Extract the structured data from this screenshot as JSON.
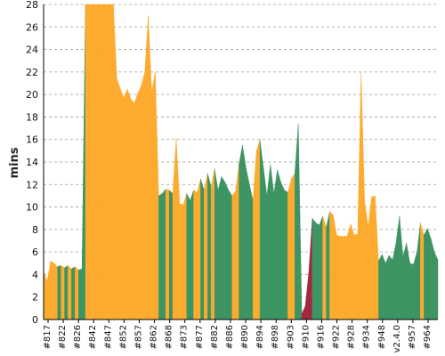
{
  "chart_data": {
    "type": "area",
    "title": "",
    "xlabel": "",
    "ylabel": "mins",
    "ylim": [
      0,
      28
    ],
    "yticks": [
      0,
      2,
      4,
      6,
      8,
      10,
      12,
      14,
      16,
      18,
      20,
      22,
      24,
      26,
      28
    ],
    "grid": true,
    "colors": {
      "success": "#3d9463",
      "unstable": "#fdab2f",
      "failure": "#a3273e"
    },
    "x_tick_labels": [
      "#817",
      "#822",
      "#826",
      "#842",
      "#847",
      "#852",
      "#857",
      "#862",
      "#868",
      "#873",
      "#877",
      "#882",
      "#886",
      "#890",
      "#894",
      "#898",
      "#903",
      "#910",
      "#916",
      "#922",
      "#928",
      "#934",
      "#948",
      "v2.4.0",
      "#957",
      "#964"
    ],
    "points": [
      [
        4.3,
        "u"
      ],
      [
        3.4,
        "u"
      ],
      [
        5.2,
        "u"
      ],
      [
        5.0,
        "u"
      ],
      [
        4.7,
        "s"
      ],
      [
        4.8,
        "u"
      ],
      [
        4.6,
        "s"
      ],
      [
        4.8,
        "u"
      ],
      [
        4.5,
        "s"
      ],
      [
        4.7,
        "u"
      ],
      [
        4.4,
        "s"
      ],
      [
        4.5,
        "s"
      ],
      [
        28.5,
        "u"
      ],
      [
        28.5,
        "u"
      ],
      [
        28.5,
        "u"
      ],
      [
        28.5,
        "u"
      ],
      [
        28.5,
        "u"
      ],
      [
        28.5,
        "u"
      ],
      [
        28.5,
        "u"
      ],
      [
        28.5,
        "u"
      ],
      [
        28.5,
        "u"
      ],
      [
        21.4,
        "u"
      ],
      [
        20.5,
        "u"
      ],
      [
        19.7,
        "u"
      ],
      [
        20.5,
        "u"
      ],
      [
        19.6,
        "u"
      ],
      [
        19.2,
        "u"
      ],
      [
        20.1,
        "u"
      ],
      [
        20.8,
        "u"
      ],
      [
        22.0,
        "u"
      ],
      [
        27.0,
        "u"
      ],
      [
        20.2,
        "u"
      ],
      [
        22.0,
        "u"
      ],
      [
        11.0,
        "s"
      ],
      [
        11.2,
        "s"
      ],
      [
        11.6,
        "u"
      ],
      [
        11.5,
        "s"
      ],
      [
        11.2,
        "u"
      ],
      [
        16.1,
        "u"
      ],
      [
        10.3,
        "u"
      ],
      [
        10.2,
        "u"
      ],
      [
        11.2,
        "s"
      ],
      [
        10.6,
        "s"
      ],
      [
        11.5,
        "u"
      ],
      [
        11.3,
        "u"
      ],
      [
        12.5,
        "s"
      ],
      [
        11.5,
        "u"
      ],
      [
        13.0,
        "s"
      ],
      [
        11.8,
        "u"
      ],
      [
        13.4,
        "s"
      ],
      [
        11.5,
        "s"
      ],
      [
        12.7,
        "s"
      ],
      [
        12.2,
        "s"
      ],
      [
        11.5,
        "s"
      ],
      [
        11.0,
        "u"
      ],
      [
        11.4,
        "u"
      ],
      [
        13.8,
        "s"
      ],
      [
        15.5,
        "s"
      ],
      [
        13.5,
        "s"
      ],
      [
        12.0,
        "s"
      ],
      [
        10.6,
        "u"
      ],
      [
        15.0,
        "u"
      ],
      [
        16.0,
        "s"
      ],
      [
        13.5,
        "s"
      ],
      [
        11.0,
        "s"
      ],
      [
        13.8,
        "s"
      ],
      [
        11.2,
        "s"
      ],
      [
        13.3,
        "s"
      ],
      [
        12.2,
        "s"
      ],
      [
        11.5,
        "s"
      ],
      [
        11.3,
        "u"
      ],
      [
        12.5,
        "u"
      ],
      [
        13.0,
        "s"
      ],
      [
        17.4,
        "s"
      ],
      [
        0.5,
        "f"
      ],
      [
        1.2,
        "f"
      ],
      [
        4.2,
        "f"
      ],
      [
        9.0,
        "s"
      ],
      [
        8.6,
        "s"
      ],
      [
        8.4,
        "s"
      ],
      [
        9.2,
        "u"
      ],
      [
        8.2,
        "s"
      ],
      [
        9.6,
        "u"
      ],
      [
        9.3,
        "u"
      ],
      [
        7.5,
        "u"
      ],
      [
        7.4,
        "u"
      ],
      [
        7.4,
        "u"
      ],
      [
        7.4,
        "u"
      ],
      [
        8.5,
        "u"
      ],
      [
        7.5,
        "u"
      ],
      [
        7.6,
        "u"
      ],
      [
        22.0,
        "u"
      ],
      [
        10.5,
        "u"
      ],
      [
        8.3,
        "u"
      ],
      [
        10.9,
        "u"
      ],
      [
        11.0,
        "u"
      ],
      [
        5.2,
        "s"
      ],
      [
        5.8,
        "s"
      ],
      [
        5.0,
        "s"
      ],
      [
        5.7,
        "s"
      ],
      [
        5.3,
        "s"
      ],
      [
        6.8,
        "s"
      ],
      [
        9.2,
        "s"
      ],
      [
        5.6,
        "s"
      ],
      [
        6.8,
        "s"
      ],
      [
        5.0,
        "s"
      ],
      [
        4.9,
        "s"
      ],
      [
        6.0,
        "s"
      ],
      [
        8.6,
        "u"
      ],
      [
        7.5,
        "s"
      ],
      [
        8.1,
        "s"
      ],
      [
        7.2,
        "s"
      ],
      [
        6.0,
        "s"
      ],
      [
        5.3,
        "s"
      ]
    ]
  }
}
